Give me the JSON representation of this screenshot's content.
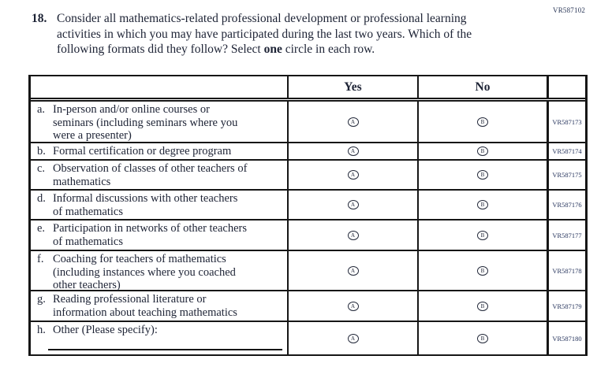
{
  "form_code": "VR587102",
  "question": {
    "number": "18.",
    "text_before_bold": "Consider all mathematics-related professional development or professional learning\nactivities in which you may have participated during the last two years. Which of the\nfollowing formats did they follow? Select ",
    "bold_word": "one",
    "text_after_bold": " circle in each row.",
    "colors": {
      "ink": "#1d2335",
      "code_ink": "#25335c",
      "border": "#161616"
    }
  },
  "table": {
    "header_yes": "Yes",
    "header_no": "No",
    "yes_letter": "A",
    "no_letter": "B",
    "rows": [
      {
        "label": "a.",
        "text": "In-person and/or online courses or\nseminars (including seminars where you\nwere a presenter)",
        "code": "VR587173",
        "has_writein": false
      },
      {
        "label": "b.",
        "text": "Formal certification or degree program",
        "code": "VR587174",
        "has_writein": false
      },
      {
        "label": "c.",
        "text": "Observation of classes of other teachers of\nmathematics",
        "code": "VR587175",
        "has_writein": false
      },
      {
        "label": "d.",
        "text": "Informal discussions with other teachers\nof mathematics",
        "code": "VR587176",
        "has_writein": false
      },
      {
        "label": "e.",
        "text": "Participation in networks of other teachers\nof mathematics",
        "code": "VR587177",
        "has_writein": false
      },
      {
        "label": "f.",
        "text": "Coaching for teachers of mathematics\n(including instances where you coached\nother teachers)",
        "code": "VR587178",
        "has_writein": false
      },
      {
        "label": "g.",
        "text": "Reading professional literature or\ninformation about teaching mathematics",
        "code": "VR587179",
        "has_writein": false
      },
      {
        "label": "h.",
        "text": "Other (Please specify):",
        "code": "VR587180",
        "has_writein": true
      }
    ]
  }
}
